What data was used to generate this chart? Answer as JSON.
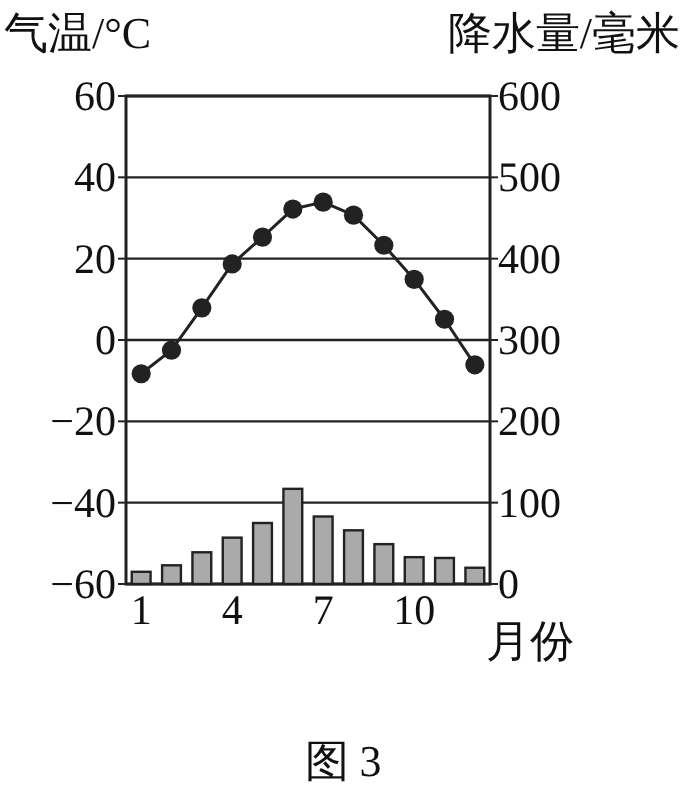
{
  "chart_data": {
    "type": "line",
    "ylabel": "气温/°C",
    "y2label": "降水量/毫米",
    "xlabel": "月份",
    "categories": [
      "1",
      null,
      null,
      "4",
      null,
      null,
      "7",
      null,
      null,
      "10",
      null,
      null
    ],
    "series": [
      {
        "color": "#222222",
        "values": [
          -8.3,
          -2.5,
          7.9,
          18.7,
          25.3,
          32.2,
          33.9,
          30.7,
          23.3,
          14.9,
          5.1,
          -6.1
        ]
      },
      {
        "type": "bar",
        "axis": "y2",
        "color": "#aaaaaa",
        "values": [
          15,
          23,
          39,
          57,
          75,
          117,
          83,
          66,
          49,
          33,
          32,
          20
        ]
      }
    ],
    "ylim": [
      -60,
      60
    ],
    "yticks": [
      -60,
      -40,
      -20,
      0,
      20,
      40,
      60
    ],
    "y2lim": [
      0,
      600
    ],
    "y2ticks": [
      0,
      100,
      200,
      300,
      400,
      500,
      600
    ],
    "grid": "y",
    "marker": "circle",
    "annotations": [
      "图 3"
    ]
  }
}
